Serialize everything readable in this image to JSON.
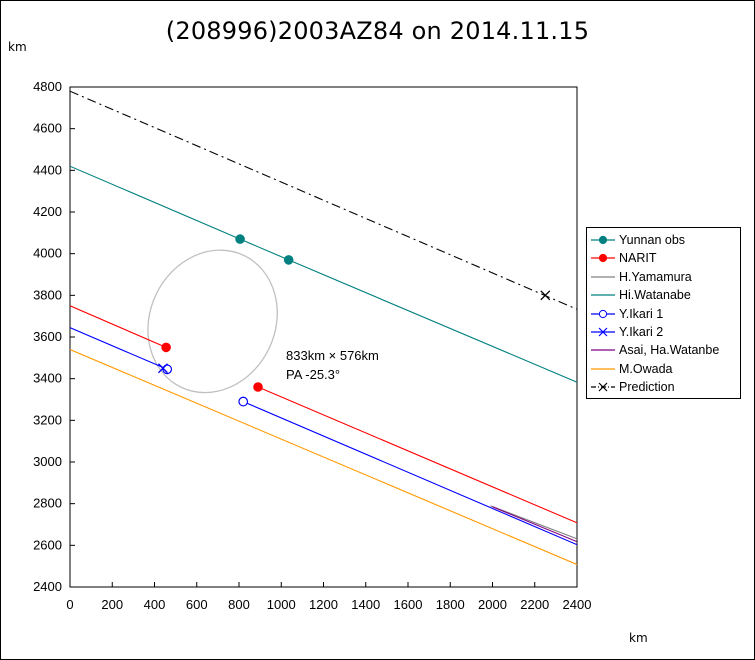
{
  "chart_data": {
    "type": "line",
    "title": "(208996)2003AZ84 on 2014.11.15",
    "xlabel": "km",
    "ylabel": "km",
    "xlim": [
      0,
      2400
    ],
    "ylim": [
      2400,
      4800
    ],
    "x_ticks": [
      "0",
      "200",
      "400",
      "600",
      "800",
      "1000",
      "1200",
      "1400",
      "1600",
      "1800",
      "2000",
      "2200",
      "2400"
    ],
    "y_ticks": [
      "2400",
      "2600",
      "2800",
      "3000",
      "3200",
      "3400",
      "3600",
      "3800",
      "4000",
      "4200",
      "4400",
      "4600",
      "4800"
    ],
    "grid": false,
    "legend_position": "right",
    "series": [
      {
        "name": "Yunnan obs",
        "color": "#008080",
        "marker": "filled-circle",
        "points": [
          [
            805,
            4070
          ],
          [
            1035,
            3970
          ]
        ]
      },
      {
        "name": "NARIT",
        "color": "#ff0000",
        "marker": "filled-circle",
        "points": [
          [
            455,
            3550
          ],
          [
            890,
            3360
          ]
        ]
      },
      {
        "name": "H.Yamamura",
        "color": "#808080",
        "marker": "none",
        "line": [
          [
            1990,
            2790
          ],
          [
            2430,
            2620
          ]
        ]
      },
      {
        "name": "Hi.Watanabe",
        "color": "#008080",
        "marker": "none",
        "line": [
          [
            0,
            4420
          ],
          [
            805,
            4070
          ],
          [
            1035,
            3970
          ],
          [
            2430,
            3370
          ]
        ]
      },
      {
        "name": "Y.Ikari 1",
        "color": "#0000ff",
        "marker": "open-circle",
        "points": [
          [
            460,
            3445
          ],
          [
            820,
            3290
          ]
        ]
      },
      {
        "name": "Y.Ikari 2",
        "color": "#0000ff",
        "marker": "x",
        "points": [
          [
            440,
            3450
          ]
        ]
      },
      {
        "name": "Asai, Ha.Watanbe",
        "color": "#800080",
        "marker": "none",
        "line": [
          [
            2000,
            2785
          ],
          [
            2430,
            2605
          ]
        ]
      },
      {
        "name": "M.Owada",
        "color": "#ff9900",
        "marker": "none",
        "line": [
          [
            0,
            3540
          ],
          [
            2430,
            2495
          ]
        ]
      },
      {
        "name": "Prediction",
        "color": "#000000",
        "marker": "x",
        "dashed": true,
        "line": [
          [
            0,
            4780
          ],
          [
            2430,
            3720
          ]
        ],
        "points": [
          [
            2250,
            3800
          ]
        ]
      }
    ],
    "extra_lines": [
      {
        "series": "NARIT",
        "color": "#ff0000",
        "line": [
          [
            0,
            3750
          ],
          [
            455,
            3550
          ]
        ]
      },
      {
        "series": "NARIT",
        "color": "#ff0000",
        "line": [
          [
            890,
            3360
          ],
          [
            2430,
            2695
          ]
        ]
      },
      {
        "series": "Y.Ikari",
        "color": "#0000ff",
        "line": [
          [
            0,
            3645
          ],
          [
            460,
            3445
          ]
        ]
      },
      {
        "series": "Y.Ikari",
        "color": "#0000ff",
        "line": [
          [
            820,
            3290
          ],
          [
            2430,
            2590
          ]
        ]
      }
    ],
    "ellipse": {
      "center": [
        675,
        3675
      ],
      "semi_axis_x_km": 416.5,
      "semi_axis_y_km": 288,
      "pa_deg": -25.3,
      "color": "#c0c0c0"
    },
    "annotations": [
      "833km × 576km",
      "PA -25.3°"
    ]
  },
  "units": {
    "y": "km",
    "x": "km"
  }
}
